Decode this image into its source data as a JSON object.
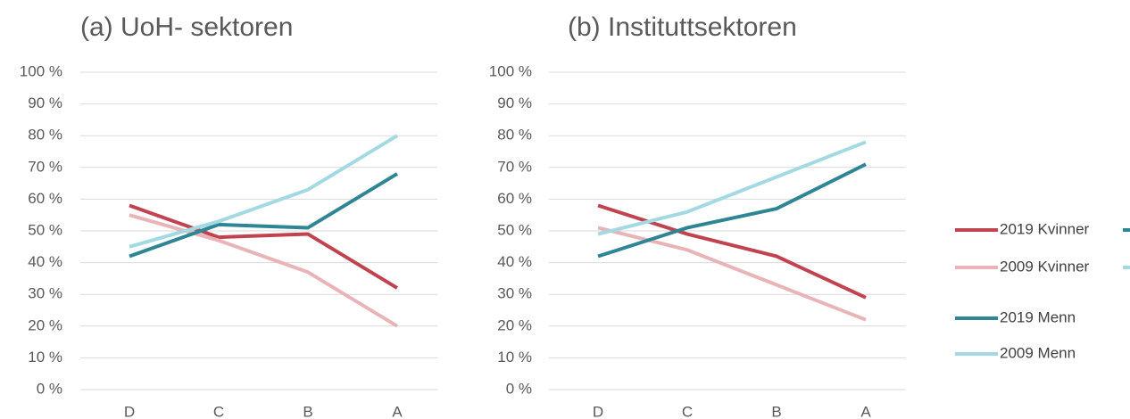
{
  "chart_data": [
    {
      "type": "line",
      "title": "(a) UoH- sektoren",
      "categories": [
        "D",
        "C",
        "B",
        "A"
      ],
      "series": [
        {
          "name": "2019 Kvinner",
          "color": "#c0434f",
          "values": [
            58,
            48,
            49,
            32
          ]
        },
        {
          "name": "2009 Kvinner",
          "color": "#e8b4b8",
          "values": [
            55,
            47,
            37,
            20
          ]
        },
        {
          "name": "2019 Menn",
          "color": "#2e8594",
          "values": [
            42,
            52,
            51,
            68
          ]
        },
        {
          "name": "2009 Menn",
          "color": "#a3d9e3",
          "values": [
            45,
            53,
            63,
            80
          ]
        }
      ],
      "ylim": [
        0,
        100
      ],
      "yticks": [
        {
          "value": 0,
          "label": "0 %"
        },
        {
          "value": 10,
          "label": "10 %"
        },
        {
          "value": 20,
          "label": "20 %"
        },
        {
          "value": 30,
          "label": "30 %"
        },
        {
          "value": 40,
          "label": "40 %"
        },
        {
          "value": 50,
          "label": "50 %"
        },
        {
          "value": 60,
          "label": "60 %"
        },
        {
          "value": 70,
          "label": "70 %"
        },
        {
          "value": 80,
          "label": "80 %"
        },
        {
          "value": 90,
          "label": "90 %"
        },
        {
          "value": 100,
          "label": "100 %"
        }
      ],
      "grid": true
    },
    {
      "type": "line",
      "title": "(b) Instituttsektoren",
      "categories": [
        "D",
        "C",
        "B",
        "A"
      ],
      "series": [
        {
          "name": "2019 Kvinner",
          "color": "#c0434f",
          "values": [
            58,
            49,
            42,
            29
          ]
        },
        {
          "name": "2009 Kvinner",
          "color": "#e8b4b8",
          "values": [
            51,
            44,
            33,
            22
          ]
        },
        {
          "name": "2019 Menn",
          "color": "#2e8594",
          "values": [
            42,
            51,
            57,
            71
          ]
        },
        {
          "name": "2009 Menn",
          "color": "#a3d9e3",
          "values": [
            49,
            56,
            67,
            78
          ]
        }
      ],
      "ylim": [
        0,
        100
      ],
      "yticks": [
        {
          "value": 0,
          "label": "0 %"
        },
        {
          "value": 10,
          "label": "10 %"
        },
        {
          "value": 20,
          "label": "20 %"
        },
        {
          "value": 30,
          "label": "30 %"
        },
        {
          "value": 40,
          "label": "40 %"
        },
        {
          "value": 50,
          "label": "50 %"
        },
        {
          "value": 60,
          "label": "60 %"
        },
        {
          "value": 70,
          "label": "70 %"
        },
        {
          "value": 80,
          "label": "80 %"
        },
        {
          "value": 90,
          "label": "90 %"
        },
        {
          "value": 100,
          "label": "100 %"
        }
      ],
      "grid": true
    }
  ]
}
